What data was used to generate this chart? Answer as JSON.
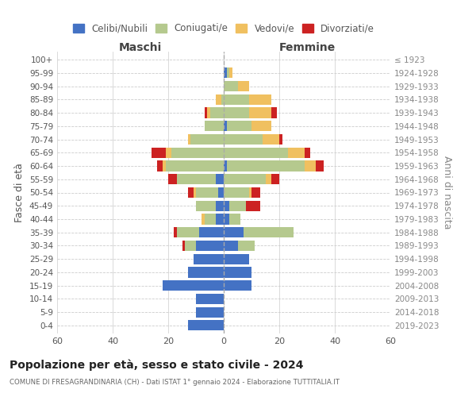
{
  "age_groups": [
    "0-4",
    "5-9",
    "10-14",
    "15-19",
    "20-24",
    "25-29",
    "30-34",
    "35-39",
    "40-44",
    "45-49",
    "50-54",
    "55-59",
    "60-64",
    "65-69",
    "70-74",
    "75-79",
    "80-84",
    "85-89",
    "90-94",
    "95-99",
    "100+"
  ],
  "birth_years": [
    "2019-2023",
    "2014-2018",
    "2009-2013",
    "2004-2008",
    "1999-2003",
    "1994-1998",
    "1989-1993",
    "1984-1988",
    "1979-1983",
    "1974-1978",
    "1969-1973",
    "1964-1968",
    "1959-1963",
    "1954-1958",
    "1949-1953",
    "1944-1948",
    "1939-1943",
    "1934-1938",
    "1929-1933",
    "1924-1928",
    "≤ 1923"
  ],
  "males": {
    "celibe": [
      13,
      10,
      10,
      22,
      13,
      11,
      10,
      9,
      3,
      3,
      2,
      3,
      0,
      0,
      0,
      0,
      0,
      0,
      0,
      0,
      0
    ],
    "coniugato": [
      0,
      0,
      0,
      0,
      0,
      0,
      4,
      8,
      4,
      7,
      8,
      14,
      21,
      19,
      12,
      7,
      5,
      1,
      0,
      0,
      0
    ],
    "vedovo": [
      0,
      0,
      0,
      0,
      0,
      0,
      0,
      0,
      1,
      0,
      1,
      0,
      1,
      2,
      1,
      0,
      1,
      2,
      0,
      0,
      0
    ],
    "divorziato": [
      0,
      0,
      0,
      0,
      0,
      0,
      1,
      1,
      0,
      0,
      2,
      3,
      2,
      5,
      0,
      0,
      1,
      0,
      0,
      0,
      0
    ]
  },
  "females": {
    "nubile": [
      0,
      0,
      0,
      10,
      10,
      9,
      5,
      7,
      2,
      2,
      0,
      0,
      1,
      0,
      0,
      1,
      0,
      0,
      0,
      1,
      0
    ],
    "coniugata": [
      0,
      0,
      0,
      0,
      0,
      0,
      6,
      18,
      4,
      6,
      9,
      15,
      28,
      23,
      14,
      9,
      9,
      9,
      5,
      1,
      0
    ],
    "vedova": [
      0,
      0,
      0,
      0,
      0,
      0,
      0,
      0,
      0,
      0,
      1,
      2,
      4,
      6,
      6,
      7,
      8,
      8,
      4,
      1,
      0
    ],
    "divorziata": [
      0,
      0,
      0,
      0,
      0,
      0,
      0,
      0,
      0,
      5,
      3,
      3,
      3,
      2,
      1,
      0,
      2,
      0,
      0,
      0,
      0
    ]
  },
  "colors": {
    "celibe": "#4472C4",
    "coniugato": "#b5c98e",
    "vedovo": "#f0c060",
    "divorziato": "#cc2222"
  },
  "title": "Popolazione per età, sesso e stato civile - 2024",
  "subtitle": "COMUNE DI FRESAGRANDINARIA (CH) - Dati ISTAT 1° gennaio 2024 - Elaborazione TUTTITALIA.IT",
  "ylabel": "Fasce di età",
  "right_ylabel": "Anni di nascita",
  "xlabel_left": "Maschi",
  "xlabel_right": "Femmine",
  "xlim": 60,
  "legend_labels": [
    "Celibi/Nubili",
    "Coniugati/e",
    "Vedovi/e",
    "Divorziati/e"
  ],
  "background_color": "#ffffff",
  "grid_color": "#cccccc"
}
